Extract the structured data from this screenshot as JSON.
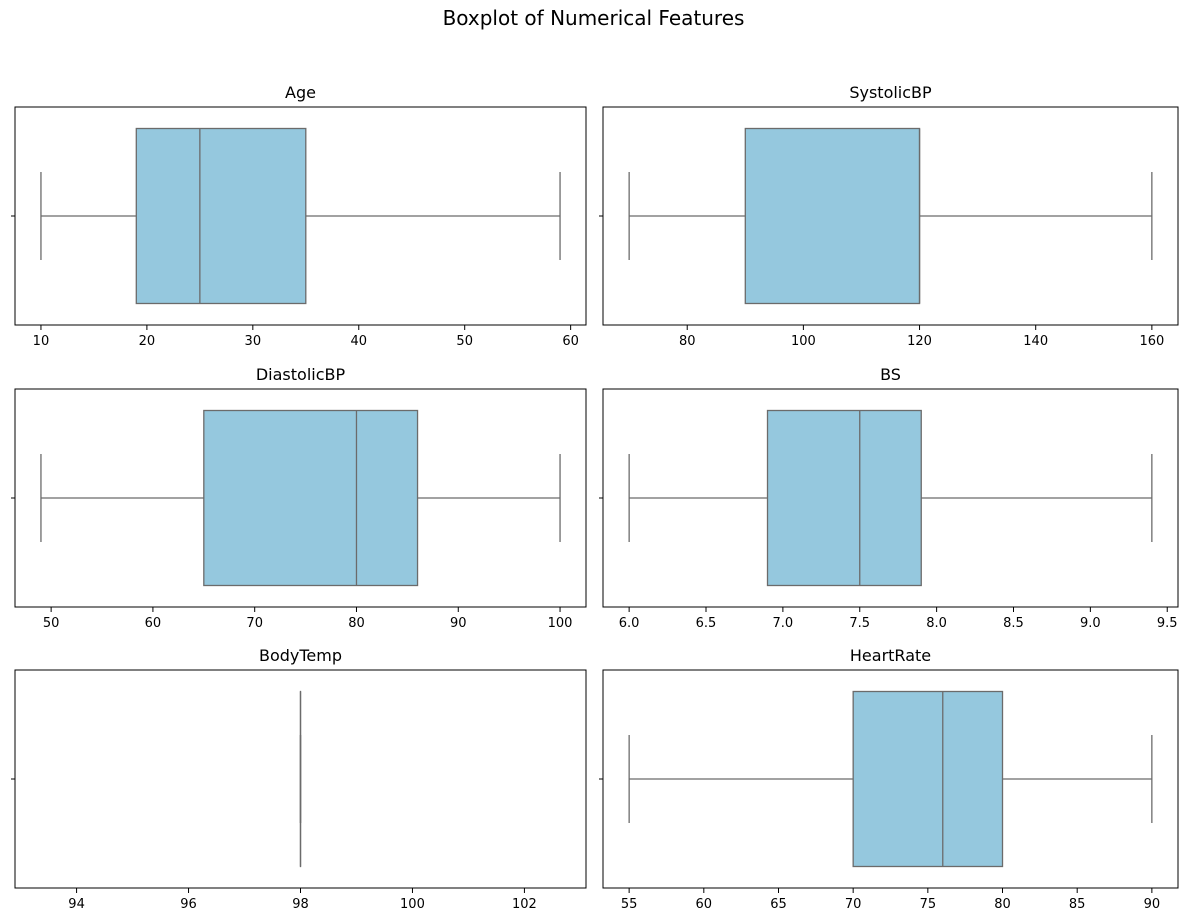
{
  "figure": {
    "title": "Boxplot of Numerical Features"
  },
  "colors": {
    "box_fill": "#95c8de",
    "line": "#6b6b6b",
    "frame": "#000000"
  },
  "chart_data": [
    {
      "type": "box",
      "title": "Age",
      "xlim": [
        7.55,
        61.45
      ],
      "xticks": [
        10,
        20,
        30,
        40,
        50,
        60
      ],
      "xtick_labels": [
        "10",
        "20",
        "30",
        "40",
        "50",
        "60"
      ],
      "whisker_low": 10,
      "q1": 19,
      "median": 25,
      "q3": 35,
      "whisker_high": 59
    },
    {
      "type": "box",
      "title": "SystolicBP",
      "xlim": [
        65.5,
        164.5
      ],
      "xticks": [
        80,
        100,
        120,
        140,
        160
      ],
      "xtick_labels": [
        "80",
        "100",
        "120",
        "140",
        "160"
      ],
      "whisker_low": 70,
      "q1": 90,
      "median": 120,
      "q3": 120,
      "whisker_high": 160
    },
    {
      "type": "box",
      "title": "DiastolicBP",
      "xlim": [
        46.45,
        102.55
      ],
      "xticks": [
        50,
        60,
        70,
        80,
        90,
        100
      ],
      "xtick_labels": [
        "50",
        "60",
        "70",
        "80",
        "90",
        "100"
      ],
      "whisker_low": 49,
      "q1": 65,
      "median": 80,
      "q3": 86,
      "whisker_high": 100
    },
    {
      "type": "box",
      "title": "BS",
      "xlim": [
        5.83,
        9.57
      ],
      "xticks": [
        6.0,
        6.5,
        7.0,
        7.5,
        8.0,
        8.5,
        9.0,
        9.5
      ],
      "xtick_labels": [
        "6.0",
        "6.5",
        "7.0",
        "7.5",
        "8.0",
        "8.5",
        "9.0",
        "9.5"
      ],
      "whisker_low": 6.0,
      "q1": 6.9,
      "median": 7.5,
      "q3": 7.9,
      "whisker_high": 9.4
    },
    {
      "type": "box",
      "title": "BodyTemp",
      "xlim": [
        92.9,
        103.1
      ],
      "xticks": [
        94,
        96,
        98,
        100,
        102
      ],
      "xtick_labels": [
        "94",
        "96",
        "98",
        "100",
        "102"
      ],
      "whisker_low": 98,
      "q1": 98,
      "median": 98,
      "q3": 98,
      "whisker_high": 98
    },
    {
      "type": "box",
      "title": "HeartRate",
      "xlim": [
        53.25,
        91.75
      ],
      "xticks": [
        55,
        60,
        65,
        70,
        75,
        80,
        85,
        90
      ],
      "xtick_labels": [
        "55",
        "60",
        "65",
        "70",
        "75",
        "80",
        "85",
        "90"
      ],
      "whisker_low": 55,
      "q1": 70,
      "median": 76,
      "q3": 80,
      "whisker_high": 90
    }
  ]
}
